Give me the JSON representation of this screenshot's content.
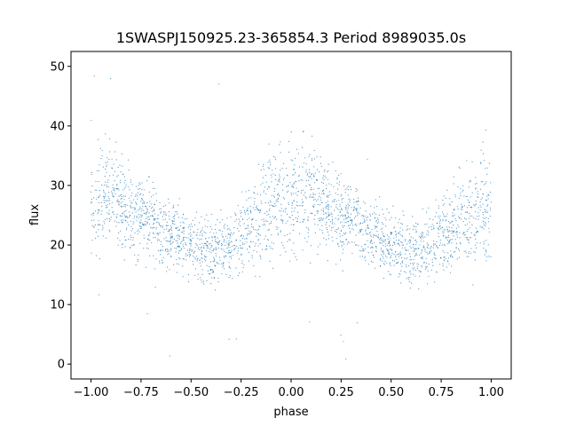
{
  "chart_data": {
    "type": "scatter",
    "title": "1SWASPJ150925.23-365854.3 Period 8989035.0s",
    "xlabel": "phase",
    "ylabel": "flux",
    "xlim": [
      -1.1,
      1.1
    ],
    "ylim": [
      -2.5,
      52.5
    ],
    "xticks": [
      -1.0,
      -0.75,
      -0.5,
      -0.25,
      0.0,
      0.25,
      0.5,
      0.75,
      1.0
    ],
    "xtick_labels": [
      "−1.00",
      "−0.75",
      "−0.50",
      "−0.25",
      "0.00",
      "0.25",
      "0.50",
      "0.75",
      "1.00"
    ],
    "yticks": [
      0,
      10,
      20,
      30,
      40,
      50
    ],
    "ytick_labels": [
      "0",
      "10",
      "20",
      "30",
      "40",
      "50"
    ],
    "grid": false,
    "legend": "none",
    "marker_color": "#1f77b4",
    "series": [
      {
        "profile_x": [
          -1.0,
          -0.9,
          -0.8,
          -0.7,
          -0.6,
          -0.5,
          -0.4,
          -0.3,
          -0.2,
          -0.1,
          0.0,
          0.1,
          0.2,
          0.3,
          0.4,
          0.5,
          0.6,
          0.7,
          0.8,
          0.9,
          1.0
        ],
        "profile_center": [
          27,
          28,
          26,
          24,
          22,
          20,
          19,
          20,
          23,
          27,
          28,
          28,
          26,
          24,
          22,
          20,
          19,
          20,
          23,
          25,
          27
        ],
        "profile_spread": [
          10,
          9,
          8,
          7,
          6,
          6,
          6,
          6,
          8,
          10,
          11,
          9,
          8,
          7,
          6,
          6,
          6,
          6,
          8,
          10,
          11
        ]
      }
    ]
  }
}
